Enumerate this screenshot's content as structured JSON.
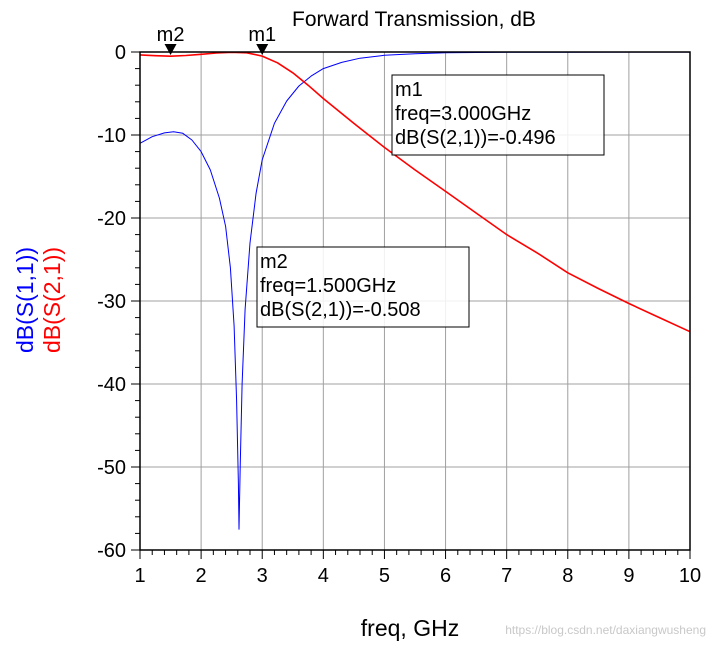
{
  "chart_data": {
    "type": "line",
    "title": "Forward Transmission, dB",
    "xlabel": "freq, GHz",
    "ylabels": [
      {
        "text": "dB(S(1,1))",
        "color": "#0000ff"
      },
      {
        "text": "dB(S(2,1))",
        "color": "#ff0000"
      }
    ],
    "xlim": [
      1,
      10
    ],
    "ylim": [
      -60,
      0
    ],
    "xticks": [
      "1",
      "2",
      "3",
      "4",
      "5",
      "6",
      "7",
      "8",
      "9",
      "10"
    ],
    "yticks": [
      "0",
      "-10",
      "-20",
      "-30",
      "-40",
      "-50",
      "-60"
    ],
    "grid": true,
    "series": [
      {
        "name": "dB(S(1,1))",
        "color": "#0000ff",
        "points": [
          [
            1.0,
            -11.0
          ],
          [
            1.2,
            -10.2
          ],
          [
            1.4,
            -9.75
          ],
          [
            1.55,
            -9.6
          ],
          [
            1.7,
            -9.8
          ],
          [
            1.85,
            -10.6
          ],
          [
            2.0,
            -12.0
          ],
          [
            2.15,
            -14.2
          ],
          [
            2.3,
            -17.6
          ],
          [
            2.4,
            -21.0
          ],
          [
            2.48,
            -26.0
          ],
          [
            2.54,
            -33.0
          ],
          [
            2.58,
            -42.0
          ],
          [
            2.61,
            -52.0
          ],
          [
            2.62,
            -57.5
          ],
          [
            2.64,
            -50.0
          ],
          [
            2.67,
            -40.0
          ],
          [
            2.72,
            -31.0
          ],
          [
            2.8,
            -23.0
          ],
          [
            2.9,
            -17.0
          ],
          [
            3.0,
            -13.0
          ],
          [
            3.2,
            -8.6
          ],
          [
            3.4,
            -5.9
          ],
          [
            3.6,
            -4.1
          ],
          [
            3.8,
            -2.9
          ],
          [
            4.0,
            -2.0
          ],
          [
            4.3,
            -1.25
          ],
          [
            4.6,
            -0.75
          ],
          [
            5.0,
            -0.4
          ],
          [
            5.5,
            -0.2
          ],
          [
            6.0,
            -0.1
          ],
          [
            7.0,
            -0.04
          ],
          [
            8.0,
            -0.02
          ],
          [
            9.0,
            -0.01
          ],
          [
            10.0,
            -0.01
          ]
        ]
      },
      {
        "name": "dB(S(2,1))",
        "color": "#ff0000",
        "points": [
          [
            1.0,
            -0.35
          ],
          [
            1.25,
            -0.44
          ],
          [
            1.5,
            -0.508
          ],
          [
            1.75,
            -0.42
          ],
          [
            2.0,
            -0.28
          ],
          [
            2.25,
            -0.12
          ],
          [
            2.5,
            -0.04
          ],
          [
            2.75,
            -0.1
          ],
          [
            3.0,
            -0.496
          ],
          [
            3.25,
            -1.3
          ],
          [
            3.5,
            -2.5
          ],
          [
            3.75,
            -4.0
          ],
          [
            4.0,
            -5.6
          ],
          [
            4.5,
            -8.6
          ],
          [
            5.0,
            -11.5
          ],
          [
            5.5,
            -14.2
          ],
          [
            6.0,
            -16.8
          ],
          [
            6.5,
            -19.4
          ],
          [
            7.0,
            -22.0
          ],
          [
            7.5,
            -24.2
          ],
          [
            8.0,
            -26.6
          ],
          [
            8.5,
            -28.5
          ],
          [
            9.0,
            -30.3
          ],
          [
            9.5,
            -32.0
          ],
          [
            10.0,
            -33.7
          ]
        ]
      }
    ],
    "markers": [
      {
        "name": "m1",
        "freq": 3.0,
        "value": -0.496,
        "lines": [
          "m1",
          "freq=3.000GHz",
          "dB(S(2,1))=-0.496"
        ]
      },
      {
        "name": "m2",
        "freq": 1.5,
        "value": -0.508,
        "lines": [
          "m2",
          "freq=1.500GHz",
          "dB(S(2,1))=-0.508"
        ]
      }
    ]
  },
  "watermark": "https://blog.csdn.net/daxiangwusheng"
}
